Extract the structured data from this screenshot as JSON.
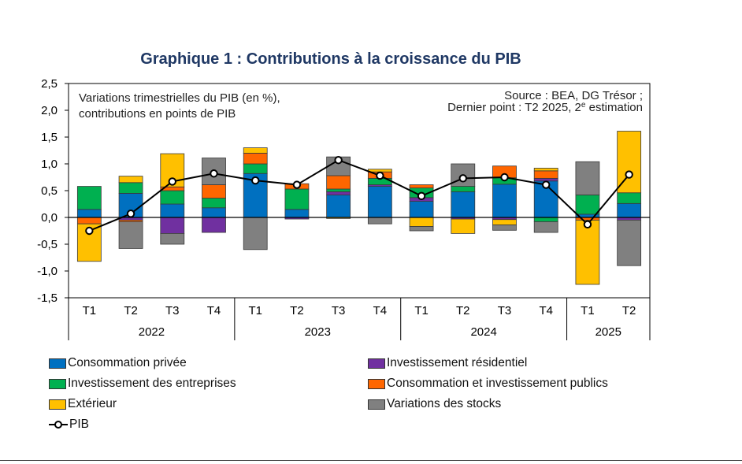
{
  "title": "Graphique 1 : Contributions à la croissance du PIB",
  "chart_data": {
    "type": "bar",
    "stacked": true,
    "title": "Graphique 1 : Contributions à la croissance du PIB",
    "notes": {
      "left_line1": "Variations trimestrielles du PIB (en %),",
      "left_line2": "contributions en points de PIB",
      "right_line1": "Source : BEA, DG Trésor ;",
      "right_line2_prefix": "Dernier point : T2 2025, 2",
      "right_line2_sup": "e",
      "right_line2_suffix": " estimation"
    },
    "ylim": [
      -1.5,
      2.5
    ],
    "yticks": [
      2.5,
      2.0,
      1.5,
      1.0,
      0.5,
      0.0,
      -0.5,
      -1.0,
      -1.5
    ],
    "ytick_labels": [
      "2,5",
      "2,0",
      "1,5",
      "1,0",
      "0,5",
      "0,0",
      "-0,5",
      "-1,0",
      "-1,5"
    ],
    "categories": [
      "T1",
      "T2",
      "T3",
      "T4",
      "T1",
      "T2",
      "T3",
      "T4",
      "T1",
      "T2",
      "T3",
      "T4",
      "T1",
      "T2"
    ],
    "years": [
      {
        "label": "2022",
        "span": 4
      },
      {
        "label": "2023",
        "span": 4
      },
      {
        "label": "2024",
        "span": 4
      },
      {
        "label": "2025",
        "span": 2
      }
    ],
    "series": [
      {
        "key": "conso",
        "name": "Consommation privée",
        "color": "#0070c0",
        "values": [
          0.15,
          0.45,
          0.25,
          0.18,
          0.82,
          0.15,
          0.42,
          0.58,
          0.3,
          0.48,
          0.62,
          0.68,
          0.06,
          0.26
        ]
      },
      {
        "key": "resid",
        "name": "Investissement résidentiel",
        "color": "#7030a0",
        "values": [
          0.0,
          -0.05,
          -0.3,
          -0.28,
          0.0,
          -0.03,
          0.06,
          0.03,
          0.07,
          -0.03,
          -0.04,
          0.05,
          0.0,
          -0.05
        ]
      },
      {
        "key": "entreprises",
        "name": "Investissement des entreprises",
        "color": "#00b050",
        "values": [
          0.43,
          0.2,
          0.25,
          0.18,
          0.18,
          0.38,
          0.05,
          0.12,
          0.18,
          0.1,
          0.12,
          -0.08,
          0.36,
          0.2
        ]
      },
      {
        "key": "publics",
        "name": "Consommation et investissement publics",
        "color": "#ff6600",
        "values": [
          -0.12,
          -0.03,
          0.07,
          0.25,
          0.2,
          0.1,
          0.25,
          0.12,
          0.06,
          0.0,
          0.22,
          0.14,
          -0.05,
          0.0
        ]
      },
      {
        "key": "exterieur",
        "name": "Extérieur",
        "color": "#ffc000",
        "values": [
          -0.7,
          0.12,
          0.62,
          0.0,
          0.1,
          0.0,
          -0.02,
          0.05,
          -0.17,
          -0.27,
          -0.1,
          0.05,
          -1.2,
          1.15
        ]
      },
      {
        "key": "stocks",
        "name": "Variations des stocks",
        "color": "#808080",
        "values": [
          0.0,
          -0.5,
          -0.2,
          0.5,
          -0.6,
          0.0,
          0.35,
          -0.12,
          -0.08,
          0.42,
          -0.1,
          -0.2,
          0.62,
          -0.85
        ]
      }
    ],
    "line": {
      "name": "PIB",
      "values": [
        -0.25,
        0.07,
        0.67,
        0.82,
        0.69,
        0.61,
        1.07,
        0.78,
        0.4,
        0.73,
        0.75,
        0.61,
        -0.13,
        0.8
      ]
    },
    "legend_position": "bottom"
  }
}
